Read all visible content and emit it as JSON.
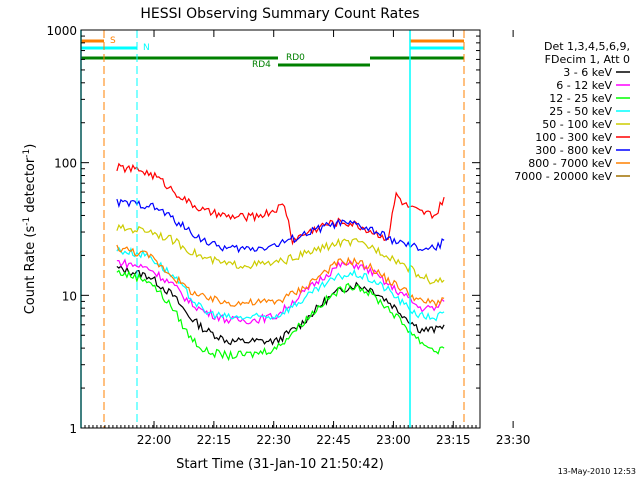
{
  "chart_data": {
    "type": "line",
    "title": "HESSI Observing Summary Count Rates",
    "xlabel": "Start Time (31-Jan-10 21:50:42)",
    "ylabel_main": "Count Rate (s",
    "ylabel_sup1": "-1",
    "ylabel_mid": " detector",
    "ylabel_sup2": "-1",
    "ylabel_end": ")",
    "yscale": "log",
    "xlim_minutes": [
      -9,
      91
    ],
    "ylim": [
      1,
      1000
    ],
    "x_ticks": [
      {
        "m": 9.3,
        "label": "22:00"
      },
      {
        "m": 24.3,
        "label": "22:15"
      },
      {
        "m": 39.3,
        "label": "22:30"
      },
      {
        "m": 54.3,
        "label": "22:45"
      },
      {
        "m": 69.3,
        "label": "23:00"
      },
      {
        "m": 84.3,
        "label": "23:15"
      },
      {
        "m": 99.3,
        "label": "23:30"
      }
    ],
    "y_ticks": [
      {
        "v": 1,
        "label": "1"
      },
      {
        "v": 10,
        "label": "10"
      },
      {
        "v": 100,
        "label": "100"
      },
      {
        "v": 1000,
        "label": "1000"
      }
    ],
    "legend_header": [
      "Det 1,3,4,5,6,9,",
      "FDecim 1, Att 0"
    ],
    "series": [
      {
        "name": "3 - 6 keV",
        "color": "#000000",
        "points": [
          [
            0,
            16
          ],
          [
            8,
            14
          ],
          [
            14,
            10
          ],
          [
            18,
            7
          ],
          [
            22,
            5.5
          ],
          [
            28,
            4.5
          ],
          [
            34,
            4.5
          ],
          [
            40,
            4.5
          ],
          [
            46,
            6
          ],
          [
            52,
            9
          ],
          [
            56,
            11
          ],
          [
            60,
            12
          ],
          [
            64,
            11
          ],
          [
            68,
            9
          ],
          [
            72,
            7
          ],
          [
            76,
            5.5
          ],
          [
            80,
            5.5
          ],
          [
            82,
            6
          ]
        ]
      },
      {
        "name": "6 - 12 keV",
        "color": "#ff00ff",
        "points": [
          [
            0,
            18
          ],
          [
            8,
            16
          ],
          [
            14,
            12
          ],
          [
            18,
            9
          ],
          [
            22,
            7.5
          ],
          [
            28,
            6.5
          ],
          [
            34,
            6.5
          ],
          [
            40,
            7
          ],
          [
            46,
            10
          ],
          [
            52,
            14
          ],
          [
            56,
            17
          ],
          [
            60,
            17
          ],
          [
            64,
            15
          ],
          [
            68,
            12
          ],
          [
            72,
            10
          ],
          [
            76,
            8
          ],
          [
            80,
            8
          ],
          [
            82,
            9
          ]
        ]
      },
      {
        "name": "12 - 25 keV",
        "color": "#00ff00",
        "points": [
          [
            0,
            15
          ],
          [
            8,
            13
          ],
          [
            14,
            8
          ],
          [
            18,
            5
          ],
          [
            22,
            3.8
          ],
          [
            28,
            3.5
          ],
          [
            34,
            3.6
          ],
          [
            40,
            4
          ],
          [
            46,
            6
          ],
          [
            52,
            9
          ],
          [
            56,
            11
          ],
          [
            60,
            12
          ],
          [
            64,
            10
          ],
          [
            68,
            8
          ],
          [
            72,
            6
          ],
          [
            76,
            4.5
          ],
          [
            80,
            3.8
          ],
          [
            82,
            4
          ]
        ]
      },
      {
        "name": "25 - 50 keV",
        "color": "#00ffff",
        "points": [
          [
            0,
            22
          ],
          [
            8,
            20
          ],
          [
            14,
            14
          ],
          [
            18,
            10
          ],
          [
            22,
            7.5
          ],
          [
            28,
            6.8
          ],
          [
            34,
            6.8
          ],
          [
            40,
            7
          ],
          [
            46,
            9
          ],
          [
            52,
            12
          ],
          [
            56,
            14
          ],
          [
            60,
            14.5
          ],
          [
            64,
            13
          ],
          [
            68,
            11
          ],
          [
            72,
            8.5
          ],
          [
            76,
            7
          ],
          [
            80,
            6.8
          ],
          [
            82,
            7.5
          ]
        ]
      },
      {
        "name": "50 - 100 keV",
        "color": "#cccc00",
        "points": [
          [
            0,
            32
          ],
          [
            8,
            31
          ],
          [
            14,
            26
          ],
          [
            18,
            22
          ],
          [
            22,
            19
          ],
          [
            28,
            17
          ],
          [
            34,
            17
          ],
          [
            40,
            17.5
          ],
          [
            46,
            20
          ],
          [
            52,
            23
          ],
          [
            56,
            25
          ],
          [
            60,
            25
          ],
          [
            64,
            23
          ],
          [
            68,
            20
          ],
          [
            72,
            17
          ],
          [
            76,
            14
          ],
          [
            80,
            12.5
          ],
          [
            82,
            13
          ]
        ]
      },
      {
        "name": "100 - 300 keV",
        "color": "#ff0000",
        "points": [
          [
            0,
            92
          ],
          [
            6,
            88
          ],
          [
            10,
            78
          ],
          [
            14,
            62
          ],
          [
            18,
            50
          ],
          [
            22,
            43
          ],
          [
            28,
            39
          ],
          [
            34,
            39
          ],
          [
            38,
            42
          ],
          [
            42,
            48
          ],
          [
            44,
            26
          ],
          [
            48,
            30
          ],
          [
            52,
            34
          ],
          [
            56,
            36
          ],
          [
            60,
            34
          ],
          [
            64,
            30
          ],
          [
            68,
            27
          ],
          [
            70,
            58
          ],
          [
            72,
            48
          ],
          [
            76,
            42
          ],
          [
            80,
            40
          ],
          [
            82,
            55
          ]
        ]
      },
      {
        "name": "300 - 800 keV",
        "color": "#0000ff",
        "points": [
          [
            0,
            50
          ],
          [
            8,
            48
          ],
          [
            12,
            42
          ],
          [
            16,
            34
          ],
          [
            20,
            28
          ],
          [
            24,
            24
          ],
          [
            28,
            22.5
          ],
          [
            34,
            22.5
          ],
          [
            40,
            24
          ],
          [
            46,
            28
          ],
          [
            52,
            33
          ],
          [
            56,
            35
          ],
          [
            60,
            34
          ],
          [
            64,
            31
          ],
          [
            68,
            27
          ],
          [
            72,
            24
          ],
          [
            76,
            22.5
          ],
          [
            80,
            22.5
          ],
          [
            82,
            26
          ]
        ]
      },
      {
        "name": "800 - 7000 keV",
        "color": "#ff8000",
        "points": [
          [
            0,
            23
          ],
          [
            8,
            20
          ],
          [
            14,
            14
          ],
          [
            18,
            11
          ],
          [
            22,
            9.5
          ],
          [
            28,
            8.8
          ],
          [
            34,
            8.8
          ],
          [
            40,
            9
          ],
          [
            46,
            11
          ],
          [
            52,
            15
          ],
          [
            56,
            18
          ],
          [
            60,
            18
          ],
          [
            64,
            16
          ],
          [
            68,
            13
          ],
          [
            72,
            11
          ],
          [
            76,
            9
          ],
          [
            80,
            8.8
          ],
          [
            82,
            9.5
          ]
        ]
      },
      {
        "name": "7000 - 20000 keV",
        "color": "#a07000",
        "points": []
      }
    ],
    "flags": [
      {
        "label": "S",
        "color": "#ff8000"
      },
      {
        "label": "N",
        "color": "#00ffff"
      },
      {
        "label": "RD0",
        "color": "#008000"
      },
      {
        "label": "RD4",
        "color": "#008000"
      }
    ],
    "grid": false,
    "legend_position": "right"
  },
  "footer": {
    "timestamp": "13-May-2010 12:53"
  }
}
